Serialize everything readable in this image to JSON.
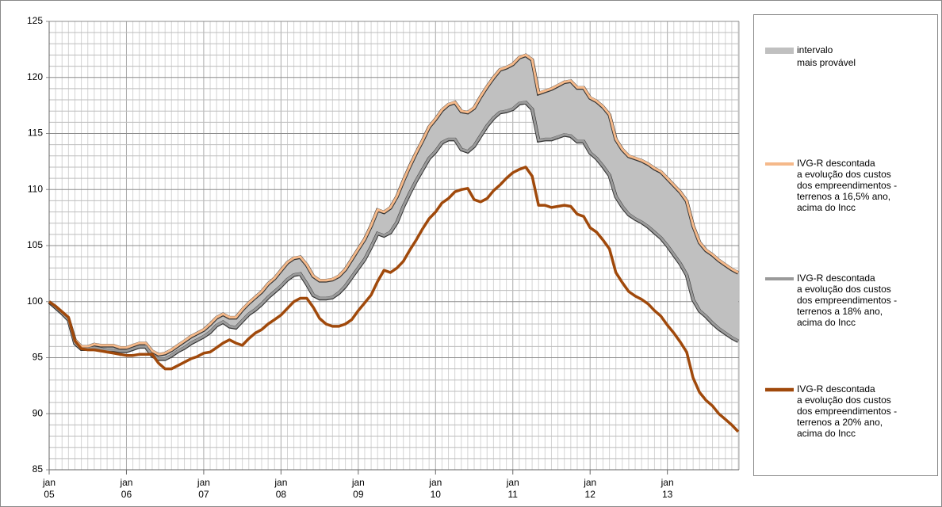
{
  "chart_data": {
    "type": "line",
    "categories": [
      "jan 05",
      null,
      null,
      null,
      null,
      null,
      null,
      null,
      null,
      null,
      null,
      null,
      "jan 06",
      null,
      null,
      null,
      null,
      null,
      null,
      null,
      null,
      null,
      null,
      null,
      "jan 07",
      null,
      null,
      null,
      null,
      null,
      null,
      null,
      null,
      null,
      null,
      null,
      "jan 08",
      null,
      null,
      null,
      null,
      null,
      null,
      null,
      null,
      null,
      null,
      null,
      "jan 09",
      null,
      null,
      null,
      null,
      null,
      null,
      null,
      null,
      null,
      null,
      null,
      "jan 10",
      null,
      null,
      null,
      null,
      null,
      null,
      null,
      null,
      null,
      null,
      null,
      "jan 11",
      null,
      null,
      null,
      null,
      null,
      null,
      null,
      null,
      null,
      null,
      null,
      "jan 12",
      null,
      null,
      null,
      null,
      null,
      null,
      null,
      null,
      null,
      null,
      null,
      "jan 13",
      null,
      null,
      null,
      null,
      null,
      null,
      null,
      null,
      null,
      null,
      null
    ],
    "band": {
      "name": "intervalo\nmais provável",
      "color": "#c0c0c0",
      "between": [
        0,
        1
      ]
    },
    "series": [
      {
        "name": "IVG-R descontada\na evolução dos custos\ndos empreendimentos -\nterrenos a 16,5% ano,\nacima do Incc",
        "color": "#f5b98a",
        "values": [
          100,
          99.5,
          99.0,
          98.5,
          96.6,
          96.0,
          96.0,
          96.2,
          96.1,
          96.1,
          96.1,
          95.9,
          95.9,
          96.1,
          96.3,
          96.3,
          95.6,
          95.3,
          95.4,
          95.7,
          96.1,
          96.5,
          96.9,
          97.2,
          97.5,
          98.0,
          98.6,
          98.9,
          98.6,
          98.6,
          99.3,
          99.9,
          100.4,
          100.9,
          101.6,
          102.1,
          102.8,
          103.5,
          103.9,
          104.0,
          103.3,
          102.3,
          101.9,
          101.9,
          102.0,
          102.3,
          102.9,
          103.8,
          104.7,
          105.6,
          106.8,
          108.2,
          108.0,
          108.4,
          109.4,
          110.8,
          112.1,
          113.3,
          114.4,
          115.6,
          116.3,
          117.1,
          117.6,
          117.8,
          117.0,
          116.9,
          117.3,
          118.3,
          119.2,
          120.0,
          120.7,
          120.9,
          121.2,
          121.8,
          122.0,
          121.6,
          118.6,
          118.8,
          119.0,
          119.3,
          119.6,
          119.7,
          119.1,
          119.1,
          118.2,
          117.9,
          117.4,
          116.7,
          114.5,
          113.6,
          113.0,
          112.8,
          112.6,
          112.3,
          111.9,
          111.6,
          111.0,
          110.4,
          109.8,
          109.0,
          106.8,
          105.3,
          104.6,
          104.2,
          103.7,
          103.3,
          102.9,
          102.6
        ]
      },
      {
        "name": "IVG-R descontada\na evolução dos custos\ndos empreendimentos -\nterrenos a 18% ano,\nacima do Incc",
        "color": "#9a9a9a",
        "values": [
          100,
          99.5,
          99.0,
          98.4,
          96.3,
          95.8,
          95.8,
          95.9,
          95.8,
          95.7,
          95.7,
          95.6,
          95.6,
          95.8,
          96.0,
          96.0,
          95.2,
          94.9,
          94.9,
          95.2,
          95.6,
          95.9,
          96.3,
          96.6,
          96.9,
          97.3,
          97.9,
          98.2,
          97.8,
          97.7,
          98.3,
          98.9,
          99.3,
          99.8,
          100.4,
          100.9,
          101.4,
          102.0,
          102.4,
          102.5,
          101.6,
          100.6,
          100.3,
          100.3,
          100.4,
          100.8,
          101.4,
          102.2,
          103.0,
          103.8,
          104.9,
          106.1,
          105.9,
          106.2,
          107.1,
          108.5,
          109.7,
          110.8,
          111.8,
          112.8,
          113.4,
          114.2,
          114.5,
          114.5,
          113.6,
          113.4,
          113.9,
          114.8,
          115.7,
          116.4,
          116.9,
          117.0,
          117.2,
          117.7,
          117.8,
          117.2,
          114.4,
          114.5,
          114.5,
          114.7,
          114.9,
          114.8,
          114.3,
          114.3,
          113.3,
          112.8,
          112.1,
          111.3,
          109.4,
          108.5,
          107.8,
          107.4,
          107.1,
          106.7,
          106.2,
          105.7,
          105.0,
          104.2,
          103.4,
          102.4,
          100.2,
          99.2,
          98.7,
          98.1,
          97.6,
          97.2,
          96.8,
          96.5
        ]
      },
      {
        "name": "IVG-R descontada\na evolução dos custos\ndos empreendimentos -\nterrenos a 20% ano,\nacima do Incc",
        "color": "#a0490b",
        "values": [
          100,
          99.6,
          99.1,
          98.6,
          96.5,
          95.8,
          95.7,
          95.7,
          95.6,
          95.5,
          95.4,
          95.3,
          95.2,
          95.2,
          95.3,
          95.3,
          95.3,
          94.5,
          94.0,
          94.0,
          94.3,
          94.6,
          94.9,
          95.1,
          95.4,
          95.5,
          95.9,
          96.3,
          96.6,
          96.3,
          96.1,
          96.7,
          97.2,
          97.5,
          98.0,
          98.4,
          98.8,
          99.4,
          100.0,
          100.3,
          100.3,
          99.5,
          98.5,
          98.0,
          97.8,
          97.8,
          98.0,
          98.4,
          99.2,
          99.9,
          100.6,
          101.8,
          102.8,
          102.6,
          103.0,
          103.6,
          104.6,
          105.5,
          106.5,
          107.4,
          108.0,
          108.8,
          109.2,
          109.8,
          110.0,
          110.1,
          109.1,
          108.9,
          109.2,
          109.9,
          110.4,
          111.0,
          111.5,
          111.8,
          112.0,
          111.2,
          108.6,
          108.6,
          108.4,
          108.5,
          108.6,
          108.5,
          107.8,
          107.6,
          106.6,
          106.2,
          105.5,
          104.7,
          102.6,
          101.7,
          100.9,
          100.5,
          100.2,
          99.8,
          99.2,
          98.7,
          97.9,
          97.2,
          96.4,
          95.5,
          93.2,
          91.9,
          91.2,
          90.7,
          90.0,
          89.5,
          89.0,
          88.4
        ]
      }
    ],
    "ylim": [
      85,
      125
    ],
    "yticks": [
      85,
      90,
      95,
      100,
      105,
      110,
      115,
      120,
      125
    ],
    "grid": true,
    "minor_grid": true,
    "legend": "right"
  }
}
